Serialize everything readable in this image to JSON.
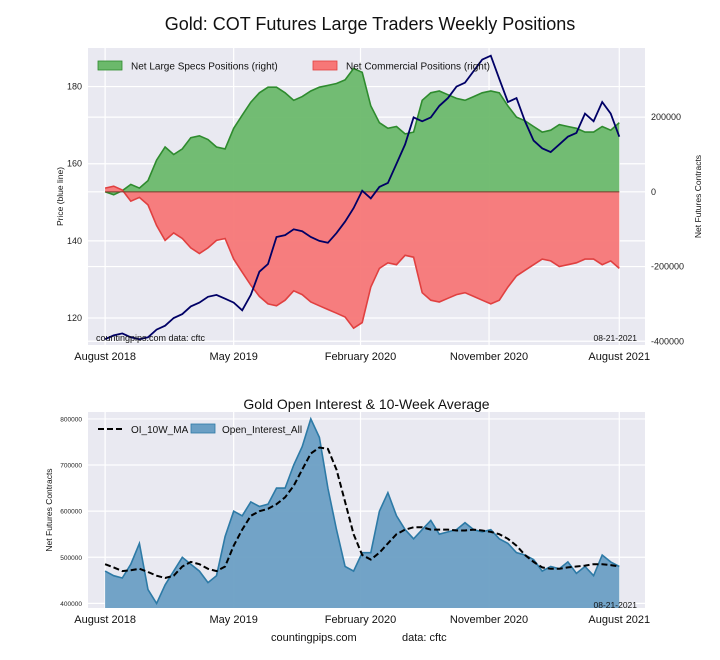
{
  "title": "Gold: COT Futures Large Traders Weekly Positions",
  "footer": {
    "site": "countingpips.com",
    "data": "data: cftc"
  },
  "colors": {
    "panel_bg": "#e9e9f1",
    "grid": "#ffffff",
    "price_line": "#000066",
    "specs_fill": "#6bb96b",
    "specs_line": "#2e8b2e",
    "comm_fill": "#f77777",
    "comm_line": "#e04040",
    "oi_fill": "#6b9fc4",
    "oi_line": "#2d7aa6",
    "ma_line": "#000000"
  },
  "chart_data": [
    {
      "type": "area",
      "title": "Gold: COT Futures Large Traders Weekly Positions",
      "xlabel": "",
      "ylabel_left": "Price (blue line)",
      "ylabel_right": "Net Futures Contracts",
      "x_range": [
        2018.5,
        2021.75
      ],
      "x_ticks": [
        {
          "x": 2018.6,
          "label": "August 2018"
        },
        {
          "x": 2019.35,
          "label": "May 2019"
        },
        {
          "x": 2020.09,
          "label": "February 2020"
        },
        {
          "x": 2020.84,
          "label": "November 2020"
        },
        {
          "x": 2021.6,
          "label": "August 2021"
        }
      ],
      "ylim_left": [
        113,
        190
      ],
      "yticks_left": [
        120,
        140,
        160,
        180
      ],
      "ylim_right": [
        -410000,
        385000
      ],
      "yticks_right": [
        {
          "v": -400000,
          "label": "-400000"
        },
        {
          "v": -200000,
          "label": "-200000"
        },
        {
          "v": 0,
          "label": "0"
        },
        {
          "v": 200000,
          "label": "200000"
        }
      ],
      "legend": "top-left",
      "legend_entries": [
        {
          "name": "Net Large Specs Positions (right)",
          "color": "#6bb96b"
        },
        {
          "name": "Net Commercial Positions (right)",
          "color": "#f77777"
        }
      ],
      "annotations": {
        "left": "countingpips.com   data: cftc",
        "right": "08-21-2021"
      },
      "series": [
        {
          "name": "Net Large Specs Positions (right)",
          "axis": "right",
          "x": [
            2018.6,
            2018.65,
            2018.7,
            2018.75,
            2018.8,
            2018.85,
            2018.9,
            2018.95,
            2019.0,
            2019.05,
            2019.1,
            2019.15,
            2019.2,
            2019.25,
            2019.3,
            2019.35,
            2019.4,
            2019.45,
            2019.5,
            2019.55,
            2019.6,
            2019.65,
            2019.7,
            2019.75,
            2019.8,
            2019.85,
            2019.9,
            2019.95,
            2020.0,
            2020.05,
            2020.1,
            2020.15,
            2020.2,
            2020.25,
            2020.3,
            2020.35,
            2020.4,
            2020.45,
            2020.5,
            2020.55,
            2020.6,
            2020.65,
            2020.7,
            2020.75,
            2020.8,
            2020.85,
            2020.9,
            2020.95,
            2021.0,
            2021.05,
            2021.1,
            2021.15,
            2021.2,
            2021.25,
            2021.3,
            2021.35,
            2021.4,
            2021.45,
            2021.5,
            2021.55,
            2021.6
          ],
          "values": [
            0,
            -8000,
            3000,
            20000,
            10000,
            30000,
            85000,
            120000,
            100000,
            115000,
            145000,
            150000,
            140000,
            120000,
            115000,
            170000,
            205000,
            240000,
            265000,
            280000,
            280000,
            265000,
            245000,
            255000,
            270000,
            280000,
            285000,
            290000,
            300000,
            330000,
            320000,
            230000,
            185000,
            170000,
            175000,
            155000,
            160000,
            245000,
            265000,
            270000,
            260000,
            250000,
            245000,
            255000,
            265000,
            270000,
            265000,
            230000,
            200000,
            190000,
            175000,
            160000,
            165000,
            180000,
            175000,
            170000,
            160000,
            160000,
            175000,
            165000,
            185000
          ]
        },
        {
          "name": "Net Commercial Positions (right)",
          "axis": "right",
          "x": [
            2018.6,
            2018.65,
            2018.7,
            2018.75,
            2018.8,
            2018.85,
            2018.9,
            2018.95,
            2019.0,
            2019.05,
            2019.1,
            2019.15,
            2019.2,
            2019.25,
            2019.3,
            2019.35,
            2019.4,
            2019.45,
            2019.5,
            2019.55,
            2019.6,
            2019.65,
            2019.7,
            2019.75,
            2019.8,
            2019.85,
            2019.9,
            2019.95,
            2020.0,
            2020.05,
            2020.1,
            2020.15,
            2020.2,
            2020.25,
            2020.3,
            2020.35,
            2020.4,
            2020.45,
            2020.5,
            2020.55,
            2020.6,
            2020.65,
            2020.7,
            2020.75,
            2020.8,
            2020.85,
            2020.9,
            2020.95,
            2021.0,
            2021.05,
            2021.1,
            2021.15,
            2021.2,
            2021.25,
            2021.3,
            2021.35,
            2021.4,
            2021.45,
            2021.5,
            2021.55,
            2021.6
          ],
          "values": [
            10000,
            15000,
            5000,
            -25000,
            -15000,
            -35000,
            -90000,
            -130000,
            -110000,
            -125000,
            -150000,
            -165000,
            -150000,
            -130000,
            -125000,
            -180000,
            -215000,
            -250000,
            -280000,
            -300000,
            -305000,
            -290000,
            -265000,
            -275000,
            -295000,
            -305000,
            -315000,
            -325000,
            -335000,
            -365000,
            -350000,
            -255000,
            -205000,
            -190000,
            -195000,
            -170000,
            -175000,
            -270000,
            -290000,
            -295000,
            -285000,
            -275000,
            -270000,
            -280000,
            -290000,
            -300000,
            -290000,
            -255000,
            -225000,
            -210000,
            -195000,
            -180000,
            -185000,
            -200000,
            -195000,
            -190000,
            -180000,
            -180000,
            -195000,
            -185000,
            -205000
          ]
        },
        {
          "name": "Price (blue line)",
          "axis": "left",
          "x": [
            2018.6,
            2018.65,
            2018.7,
            2018.75,
            2018.8,
            2018.85,
            2018.9,
            2018.95,
            2019.0,
            2019.05,
            2019.1,
            2019.15,
            2019.2,
            2019.25,
            2019.3,
            2019.35,
            2019.4,
            2019.45,
            2019.5,
            2019.55,
            2019.6,
            2019.65,
            2019.7,
            2019.75,
            2019.8,
            2019.85,
            2019.9,
            2019.95,
            2020.0,
            2020.05,
            2020.1,
            2020.15,
            2020.2,
            2020.25,
            2020.3,
            2020.35,
            2020.4,
            2020.45,
            2020.5,
            2020.55,
            2020.6,
            2020.65,
            2020.7,
            2020.75,
            2020.8,
            2020.85,
            2020.9,
            2020.95,
            2021.0,
            2021.05,
            2021.1,
            2021.15,
            2021.2,
            2021.25,
            2021.3,
            2021.35,
            2021.4,
            2021.45,
            2021.5,
            2021.55,
            2021.6
          ],
          "values": [
            114.5,
            115.5,
            116,
            115,
            114.5,
            115,
            117,
            118,
            120,
            121,
            123,
            124,
            125.5,
            126,
            125,
            124,
            122,
            126,
            132,
            134,
            141,
            141.5,
            143,
            142.5,
            141,
            140,
            139.5,
            142,
            145,
            148.5,
            153,
            151,
            154,
            155,
            160,
            165,
            172,
            171,
            172,
            175,
            177,
            180,
            181,
            184,
            187,
            188,
            182,
            176,
            177,
            171,
            166,
            164,
            163,
            165,
            167,
            168,
            173,
            171,
            176,
            173,
            167
          ]
        }
      ]
    },
    {
      "type": "area",
      "title": "Gold Open Interest & 10-Week Average",
      "xlabel": "",
      "ylabel": "Net Futures Contracts",
      "x_range": [
        2018.5,
        2021.75
      ],
      "x_ticks": [
        {
          "x": 2018.6,
          "label": "August 2018"
        },
        {
          "x": 2019.35,
          "label": "May 2019"
        },
        {
          "x": 2020.09,
          "label": "February 2020"
        },
        {
          "x": 2020.84,
          "label": "November 2020"
        },
        {
          "x": 2021.6,
          "label": "August 2021"
        }
      ],
      "ylim": [
        390000,
        815000
      ],
      "yticks": [
        {
          "v": 400000,
          "label": "400000"
        },
        {
          "v": 500000,
          "label": "500000"
        },
        {
          "v": 600000,
          "label": "600000"
        },
        {
          "v": 700000,
          "label": "700000"
        },
        {
          "v": 800000,
          "label": "800000"
        }
      ],
      "legend": "top-left",
      "legend_entries": [
        {
          "name": "OI_10W_MA",
          "color": "#000000",
          "style": "dashed"
        },
        {
          "name": "Open_Interest_All",
          "color": "#6b9fc4",
          "style": "fill"
        }
      ],
      "annotations": {
        "right": "08-21-2021"
      },
      "series": [
        {
          "name": "Open_Interest_All",
          "x": [
            2018.6,
            2018.65,
            2018.7,
            2018.75,
            2018.8,
            2018.85,
            2018.9,
            2018.95,
            2019.0,
            2019.05,
            2019.1,
            2019.15,
            2019.2,
            2019.25,
            2019.3,
            2019.35,
            2019.4,
            2019.45,
            2019.5,
            2019.55,
            2019.6,
            2019.65,
            2019.7,
            2019.75,
            2019.8,
            2019.85,
            2019.9,
            2019.95,
            2020.0,
            2020.05,
            2020.1,
            2020.15,
            2020.2,
            2020.25,
            2020.3,
            2020.35,
            2020.4,
            2020.45,
            2020.5,
            2020.55,
            2020.6,
            2020.65,
            2020.7,
            2020.75,
            2020.8,
            2020.85,
            2020.9,
            2020.95,
            2021.0,
            2021.05,
            2021.1,
            2021.15,
            2021.2,
            2021.25,
            2021.3,
            2021.35,
            2021.4,
            2021.45,
            2021.5,
            2021.55,
            2021.6
          ],
          "values": [
            470000,
            460000,
            455000,
            485000,
            530000,
            430000,
            400000,
            440000,
            470000,
            500000,
            485000,
            470000,
            445000,
            460000,
            545000,
            600000,
            590000,
            620000,
            610000,
            615000,
            650000,
            650000,
            700000,
            740000,
            800000,
            760000,
            650000,
            560000,
            480000,
            470000,
            510000,
            510000,
            600000,
            640000,
            590000,
            560000,
            540000,
            560000,
            580000,
            550000,
            555000,
            560000,
            575000,
            560000,
            555000,
            560000,
            540000,
            530000,
            510000,
            505000,
            495000,
            470000,
            480000,
            475000,
            490000,
            465000,
            480000,
            460000,
            505000,
            490000,
            480000
          ]
        },
        {
          "name": "OI_10W_MA",
          "x": [
            2018.6,
            2018.65,
            2018.7,
            2018.75,
            2018.8,
            2018.85,
            2018.9,
            2018.95,
            2019.0,
            2019.05,
            2019.1,
            2019.15,
            2019.2,
            2019.25,
            2019.3,
            2019.35,
            2019.4,
            2019.45,
            2019.5,
            2019.55,
            2019.6,
            2019.65,
            2019.7,
            2019.75,
            2019.8,
            2019.85,
            2019.9,
            2019.95,
            2020.0,
            2020.05,
            2020.1,
            2020.15,
            2020.2,
            2020.25,
            2020.3,
            2020.35,
            2020.4,
            2020.45,
            2020.5,
            2020.55,
            2020.6,
            2020.65,
            2020.7,
            2020.75,
            2020.8,
            2020.85,
            2020.9,
            2020.95,
            2021.0,
            2021.05,
            2021.1,
            2021.15,
            2021.2,
            2021.25,
            2021.3,
            2021.35,
            2021.4,
            2021.45,
            2021.5,
            2021.55,
            2021.6
          ],
          "values": [
            485000,
            478000,
            470000,
            472000,
            475000,
            468000,
            460000,
            455000,
            460000,
            480000,
            490000,
            485000,
            475000,
            470000,
            480000,
            525000,
            560000,
            590000,
            600000,
            605000,
            615000,
            630000,
            655000,
            690000,
            725000,
            738000,
            735000,
            690000,
            620000,
            550000,
            505000,
            495000,
            510000,
            530000,
            550000,
            560000,
            565000,
            565000,
            560000,
            560000,
            560000,
            558000,
            558000,
            560000,
            558000,
            555000,
            550000,
            540000,
            525000,
            505000,
            490000,
            478000,
            475000,
            475000,
            478000,
            480000,
            482000,
            485000,
            485000,
            483000,
            480000
          ]
        }
      ]
    }
  ]
}
